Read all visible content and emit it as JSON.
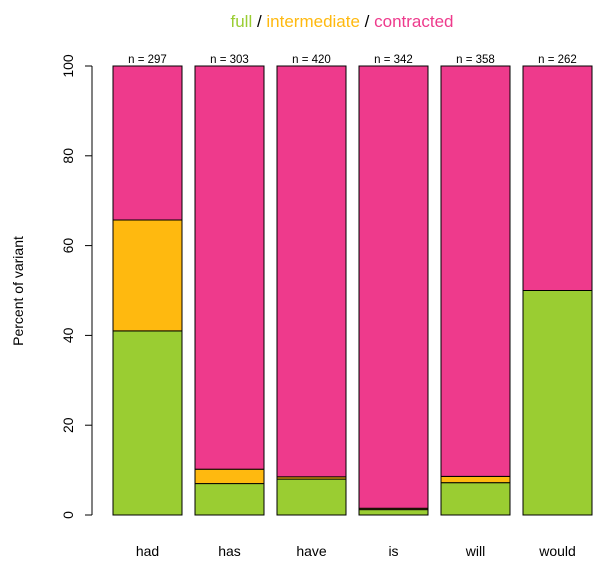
{
  "chart_data": {
    "type": "bar",
    "stacked": true,
    "title_parts": [
      {
        "text": "full",
        "color": "#9ACD32"
      },
      {
        "text": " / ",
        "color": "#000000"
      },
      {
        "text": "intermediate",
        "color": "#FFB90F"
      },
      {
        "text": " / ",
        "color": "#000000"
      },
      {
        "text": "contracted",
        "color": "#EE3A8C"
      }
    ],
    "ylabel": "Percent of variant",
    "xlabel": "",
    "ylim": [
      0,
      100
    ],
    "yticks": [
      0,
      20,
      40,
      60,
      80,
      100
    ],
    "grid": false,
    "categories": [
      "had",
      "has",
      "have",
      "is",
      "will",
      "would"
    ],
    "counts": [
      "n = 297",
      "n = 303",
      "n = 420",
      "n = 342",
      "n = 358",
      "n = 262"
    ],
    "series": [
      {
        "name": "full",
        "color": "#9ACD32",
        "values": [
          41,
          7,
          8,
          1.2,
          7.2,
          50
        ]
      },
      {
        "name": "intermediate",
        "color": "#FFB90F",
        "values": [
          24.7,
          3.2,
          0.5,
          0.3,
          1.4,
          0
        ]
      },
      {
        "name": "contracted",
        "color": "#EE3A8C",
        "values": [
          34.3,
          89.8,
          91.5,
          98.5,
          91.4,
          50
        ]
      }
    ]
  }
}
